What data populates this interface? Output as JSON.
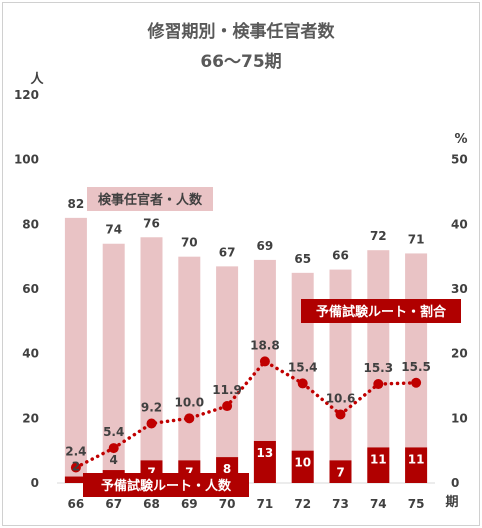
{
  "chart_data": {
    "type": "bar+line",
    "title": "修習期別・検事任官者数",
    "subtitle": "66～75期",
    "categories": [
      "66",
      "67",
      "68",
      "69",
      "70",
      "71",
      "72",
      "73",
      "74",
      "75"
    ],
    "x_unit": "期",
    "y_left": {
      "unit": "人",
      "ticks": [
        0,
        20,
        40,
        60,
        80,
        100,
        120
      ],
      "ylim": [
        0,
        120
      ]
    },
    "y_right": {
      "unit": "%",
      "ticks": [
        0,
        10,
        20,
        30,
        40,
        50
      ],
      "ylim": [
        0,
        60
      ]
    },
    "series": [
      {
        "name": "検事任官者・人数",
        "type": "bar",
        "axis": "left",
        "color": "#e9c3c5",
        "values": [
          82,
          74,
          76,
          70,
          67,
          69,
          65,
          66,
          72,
          71
        ]
      },
      {
        "name": "予備試験ルート・人数",
        "type": "bar",
        "axis": "left",
        "color": "#b00000",
        "values": [
          2,
          4,
          7,
          7,
          8,
          13,
          10,
          7,
          11,
          11
        ]
      },
      {
        "name": "予備試験ルート・割合",
        "type": "line",
        "axis": "right",
        "color": "#c00000",
        "style": "dotted",
        "values": [
          2.4,
          5.4,
          9.2,
          10.0,
          11.9,
          18.8,
          15.4,
          10.6,
          15.3,
          15.5
        ]
      }
    ],
    "grid": false
  }
}
